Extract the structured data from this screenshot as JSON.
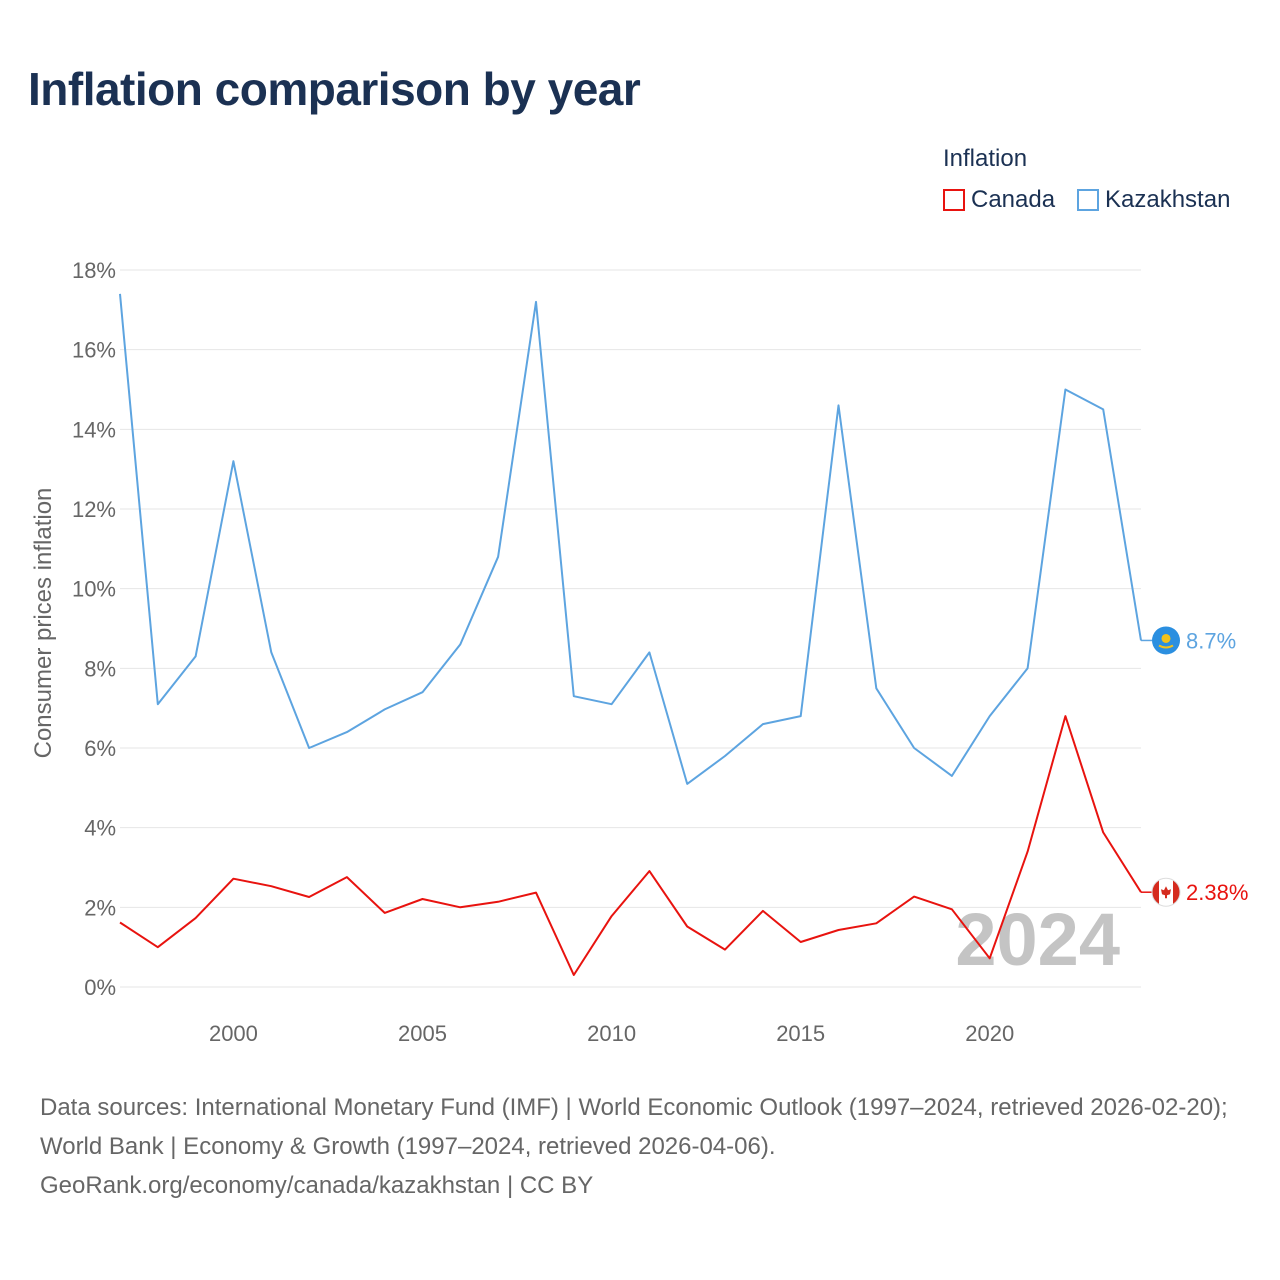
{
  "title": "Inflation comparison by year",
  "legend": {
    "title": "Inflation",
    "items": [
      {
        "name": "Canada",
        "color": "#e8130f"
      },
      {
        "name": "Kazakhstan",
        "color": "#5da4e0"
      }
    ]
  },
  "footer": {
    "sources": "Data sources: International Monetary Fund (IMF) | World Economic Outlook (1997–2024, retrieved 2026-02-20); World Bank | Economy & Growth (1997–2024, retrieved 2026-04-06).",
    "attribution": "GeoRank.org/economy/canada/kazakhstan | CC BY"
  },
  "chart_data": {
    "type": "line",
    "title": "Inflation comparison by year",
    "xlabel": "",
    "ylabel": "Consumer prices inflation",
    "xlim": [
      1997,
      2024
    ],
    "ylim": [
      0,
      18
    ],
    "x_ticks": [
      2000,
      2005,
      2010,
      2015,
      2020
    ],
    "y_ticks": [
      0,
      2,
      4,
      6,
      8,
      10,
      12,
      14,
      16,
      18
    ],
    "y_tick_labels": [
      "0%",
      "2%",
      "4%",
      "6%",
      "8%",
      "10%",
      "12%",
      "14%",
      "16%",
      "18%"
    ],
    "watermark_year": "2024",
    "grid": true,
    "x": [
      1997,
      1998,
      1999,
      2000,
      2001,
      2002,
      2003,
      2004,
      2005,
      2006,
      2007,
      2008,
      2009,
      2010,
      2011,
      2012,
      2013,
      2014,
      2015,
      2016,
      2017,
      2018,
      2019,
      2020,
      2021,
      2022,
      2023,
      2024
    ],
    "series": [
      {
        "name": "Canada",
        "color": "#e8130f",
        "end_label": "2.38%",
        "flag": "canada-flag-icon",
        "values": [
          1.62,
          1.0,
          1.73,
          2.72,
          2.53,
          2.26,
          2.76,
          1.86,
          2.21,
          2.0,
          2.14,
          2.37,
          0.3,
          1.78,
          2.91,
          1.52,
          0.94,
          1.91,
          1.13,
          1.43,
          1.6,
          2.27,
          1.95,
          0.72,
          3.4,
          6.8,
          3.88,
          2.38
        ]
      },
      {
        "name": "Kazakhstan",
        "color": "#5da4e0",
        "end_label": "8.7%",
        "flag": "kazakhstan-flag-icon",
        "values": [
          17.4,
          7.1,
          8.3,
          13.2,
          8.4,
          6.0,
          6.4,
          6.97,
          7.4,
          8.6,
          10.8,
          17.2,
          7.3,
          7.1,
          8.4,
          5.1,
          5.8,
          6.6,
          6.8,
          14.6,
          7.5,
          6.0,
          5.3,
          6.8,
          8.0,
          15.0,
          14.5,
          8.7
        ]
      }
    ]
  }
}
